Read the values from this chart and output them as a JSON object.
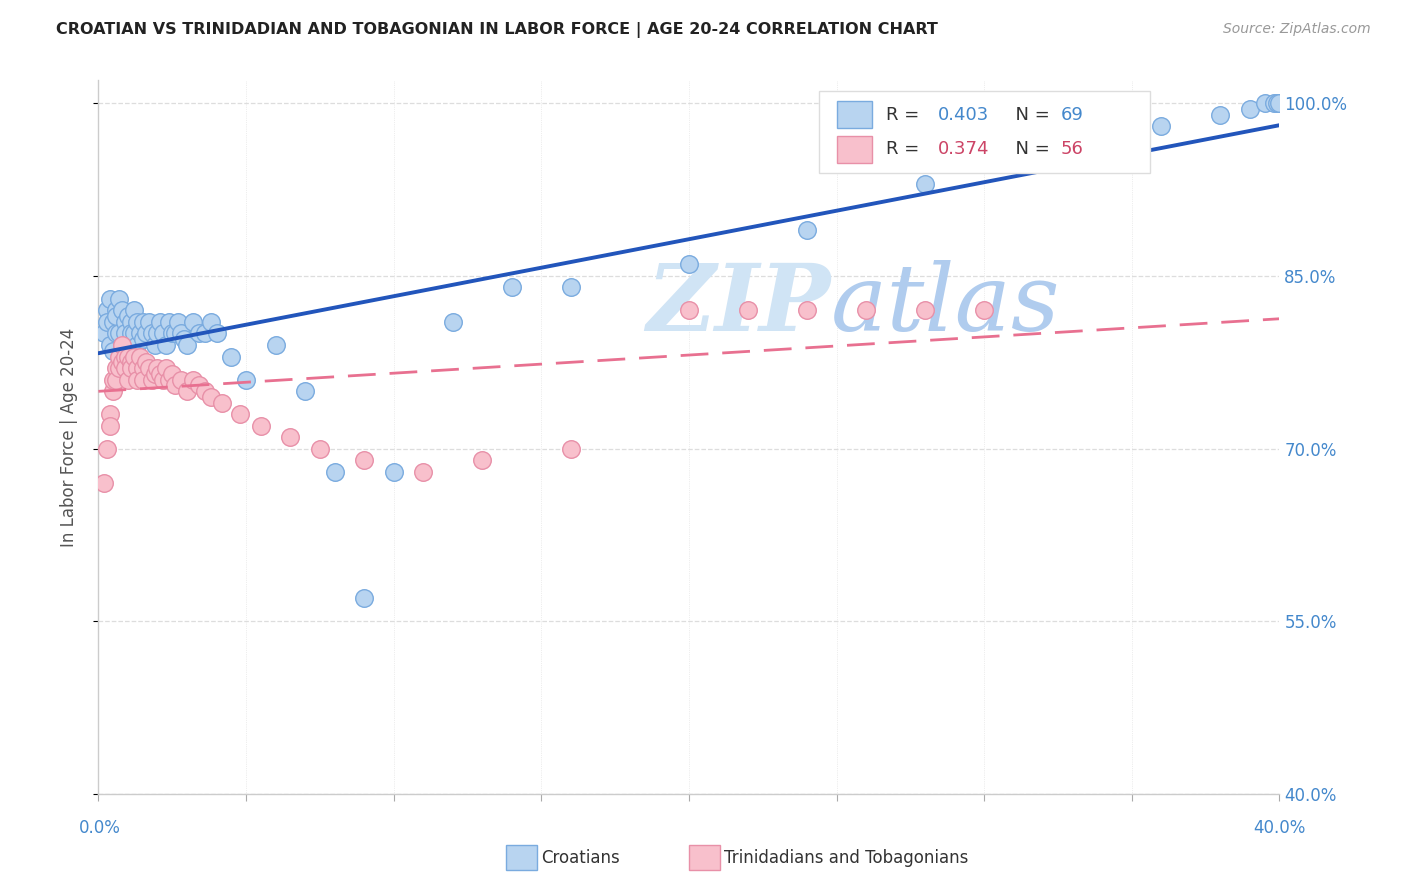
{
  "title": "CROATIAN VS TRINIDADIAN AND TOBAGONIAN IN LABOR FORCE | AGE 20-24 CORRELATION CHART",
  "source": "Source: ZipAtlas.com",
  "ylabel": "In Labor Force | Age 20-24",
  "xmin": 0.0,
  "xmax": 0.4,
  "ymin": 0.4,
  "ymax": 1.02,
  "yticks": [
    0.4,
    0.55,
    0.7,
    0.85,
    1.0
  ],
  "ytick_labels": [
    "40.0%",
    "55.0%",
    "70.0%",
    "85.0%",
    "100.0%"
  ],
  "blue_fill": "#b8d4f0",
  "blue_edge": "#7aabdf",
  "pink_fill": "#f8c0cc",
  "pink_edge": "#e890a8",
  "blue_line_color": "#2255bb",
  "pink_line_color": "#e87090",
  "tick_label_color": "#4488cc",
  "grid_color": "#dddddd",
  "title_color": "#222222",
  "source_color": "#999999",
  "ylabel_color": "#555555",
  "watermark_zip_color": "#d0e4f5",
  "watermark_atlas_color": "#b0ccee",
  "legend_box_edge": "#dddddd",
  "blue_R": "0.403",
  "blue_N": "69",
  "pink_R": "0.374",
  "pink_N": "56",
  "legend_R_color": "#333333",
  "legend_val_color_blue": "#4488cc",
  "legend_val_color_pink": "#cc4466",
  "blue_scatter_x": [
    0.002,
    0.003,
    0.003,
    0.004,
    0.004,
    0.005,
    0.005,
    0.006,
    0.006,
    0.006,
    0.007,
    0.007,
    0.008,
    0.008,
    0.009,
    0.009,
    0.01,
    0.01,
    0.011,
    0.011,
    0.012,
    0.012,
    0.013,
    0.013,
    0.014,
    0.015,
    0.015,
    0.016,
    0.017,
    0.018,
    0.019,
    0.02,
    0.021,
    0.022,
    0.023,
    0.024,
    0.025,
    0.026,
    0.027,
    0.028,
    0.029,
    0.03,
    0.032,
    0.034,
    0.036,
    0.038,
    0.04,
    0.045,
    0.05,
    0.06,
    0.07,
    0.08,
    0.09,
    0.1,
    0.12,
    0.14,
    0.16,
    0.2,
    0.24,
    0.28,
    0.31,
    0.34,
    0.36,
    0.38,
    0.39,
    0.395,
    0.398,
    0.399,
    0.4
  ],
  "blue_scatter_y": [
    0.8,
    0.82,
    0.81,
    0.79,
    0.83,
    0.81,
    0.785,
    0.8,
    0.82,
    0.815,
    0.8,
    0.83,
    0.82,
    0.79,
    0.81,
    0.8,
    0.815,
    0.79,
    0.81,
    0.8,
    0.82,
    0.8,
    0.81,
    0.79,
    0.8,
    0.81,
    0.795,
    0.8,
    0.81,
    0.8,
    0.79,
    0.8,
    0.81,
    0.8,
    0.79,
    0.81,
    0.8,
    0.8,
    0.81,
    0.8,
    0.795,
    0.79,
    0.81,
    0.8,
    0.8,
    0.81,
    0.8,
    0.78,
    0.76,
    0.79,
    0.75,
    0.68,
    0.57,
    0.68,
    0.81,
    0.84,
    0.84,
    0.86,
    0.89,
    0.93,
    0.96,
    0.97,
    0.98,
    0.99,
    0.995,
    1.0,
    1.0,
    1.0,
    1.0
  ],
  "pink_scatter_x": [
    0.002,
    0.003,
    0.004,
    0.004,
    0.005,
    0.005,
    0.006,
    0.006,
    0.007,
    0.007,
    0.008,
    0.008,
    0.009,
    0.009,
    0.01,
    0.01,
    0.011,
    0.011,
    0.012,
    0.013,
    0.013,
    0.014,
    0.015,
    0.015,
    0.016,
    0.017,
    0.018,
    0.019,
    0.02,
    0.021,
    0.022,
    0.023,
    0.024,
    0.025,
    0.026,
    0.028,
    0.03,
    0.032,
    0.034,
    0.036,
    0.038,
    0.042,
    0.048,
    0.055,
    0.065,
    0.075,
    0.09,
    0.11,
    0.13,
    0.16,
    0.2,
    0.22,
    0.24,
    0.26,
    0.28,
    0.3
  ],
  "pink_scatter_y": [
    0.67,
    0.7,
    0.73,
    0.72,
    0.75,
    0.76,
    0.77,
    0.76,
    0.78,
    0.77,
    0.79,
    0.775,
    0.78,
    0.77,
    0.78,
    0.76,
    0.775,
    0.77,
    0.78,
    0.77,
    0.76,
    0.78,
    0.77,
    0.76,
    0.775,
    0.77,
    0.76,
    0.765,
    0.77,
    0.765,
    0.76,
    0.77,
    0.76,
    0.765,
    0.755,
    0.76,
    0.75,
    0.76,
    0.755,
    0.75,
    0.745,
    0.74,
    0.73,
    0.72,
    0.71,
    0.7,
    0.69,
    0.68,
    0.69,
    0.7,
    0.82,
    0.82,
    0.82,
    0.82,
    0.82,
    0.82
  ]
}
